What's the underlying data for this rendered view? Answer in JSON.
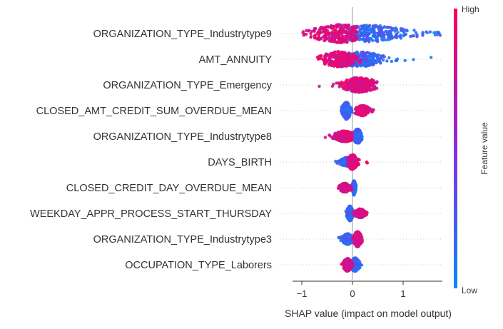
{
  "chart_data": {
    "type": "scatter",
    "subtype": "shap-beeswarm-summary",
    "xlabel": "SHAP value (impact on model output)",
    "xticks": [
      -1,
      0,
      1
    ],
    "xlim": [
      -1.1,
      1.8
    ],
    "colorbar": {
      "label": "Feature value",
      "high": "High",
      "low": "Low",
      "high_color": "#ff0052",
      "low_color": "#008bfb"
    },
    "features": [
      {
        "name": "ORGANIZATION_TYPE_Industrytype9",
        "high": {
          "min": -1.0,
          "max": 0.1,
          "peak": -0.25,
          "width": 0.55,
          "amp": 1.0
        },
        "low": {
          "min": -0.1,
          "max": 1.75,
          "peak": 0.35,
          "width": 0.7,
          "amp": 0.9
        }
      },
      {
        "name": "AMT_ANNUITY",
        "high": {
          "min": -0.7,
          "max": 0.3,
          "peak": -0.25,
          "width": 0.35,
          "amp": 0.85
        },
        "low": {
          "min": -0.2,
          "max": 1.6,
          "peak": 0.15,
          "width": 0.45,
          "amp": 0.8
        }
      },
      {
        "name": "ORGANIZATION_TYPE_Emergency",
        "high": {
          "min": -1.05,
          "max": 0.5,
          "peak": 0.15,
          "width": 0.35,
          "amp": 0.8
        },
        "low": {
          "min": -0.1,
          "max": 0.15,
          "peak": 0.05,
          "width": 0.08,
          "amp": 0.8
        }
      },
      {
        "name": "CLOSED_AMT_CREDIT_SUM_OVERDUE_MEAN",
        "high": {
          "min": 0.05,
          "max": 0.45,
          "peak": 0.2,
          "width": 0.15,
          "amp": 0.55
        },
        "low": {
          "min": -0.25,
          "max": 0.0,
          "peak": -0.12,
          "width": 0.08,
          "amp": 0.95
        }
      },
      {
        "name": "ORGANIZATION_TYPE_Industrytype8",
        "high": {
          "min": -0.6,
          "max": 0.0,
          "peak": -0.15,
          "width": 0.2,
          "amp": 0.6
        },
        "low": {
          "min": -0.05,
          "max": 0.25,
          "peak": 0.1,
          "width": 0.08,
          "amp": 0.8
        }
      },
      {
        "name": "DAYS_BIRTH",
        "high": {
          "min": -0.1,
          "max": 0.3,
          "peak": 0.0,
          "width": 0.1,
          "amp": 0.8
        },
        "low": {
          "min": -0.5,
          "max": 0.1,
          "peak": -0.1,
          "width": 0.15,
          "amp": 0.5
        }
      },
      {
        "name": "CLOSED_CREDIT_DAY_OVERDUE_MEAN",
        "high": {
          "min": -0.35,
          "max": 0.0,
          "peak": -0.15,
          "width": 0.1,
          "amp": 0.5
        },
        "low": {
          "min": -0.02,
          "max": 0.1,
          "peak": 0.03,
          "width": 0.03,
          "amp": 0.8
        }
      },
      {
        "name": "WEEKDAY_APPR_PROCESS_START_THURSDAY",
        "high": {
          "min": 0.0,
          "max": 0.35,
          "peak": 0.15,
          "width": 0.1,
          "amp": 0.5
        },
        "low": {
          "min": -0.2,
          "max": 0.1,
          "peak": -0.05,
          "width": 0.06,
          "amp": 0.8
        }
      },
      {
        "name": "ORGANIZATION_TYPE_Industrytype3",
        "high": {
          "min": -0.05,
          "max": 0.25,
          "peak": 0.1,
          "width": 0.07,
          "amp": 0.85
        },
        "low": {
          "min": -0.35,
          "max": 0.05,
          "peak": -0.1,
          "width": 0.1,
          "amp": 0.6
        }
      },
      {
        "name": "OCCUPATION_TYPE_Laborers",
        "high": {
          "min": -0.4,
          "max": 0.05,
          "peak": -0.1,
          "width": 0.08,
          "amp": 0.7
        },
        "low": {
          "min": -0.05,
          "max": 0.25,
          "peak": 0.05,
          "width": 0.08,
          "amp": 0.75
        }
      }
    ]
  }
}
